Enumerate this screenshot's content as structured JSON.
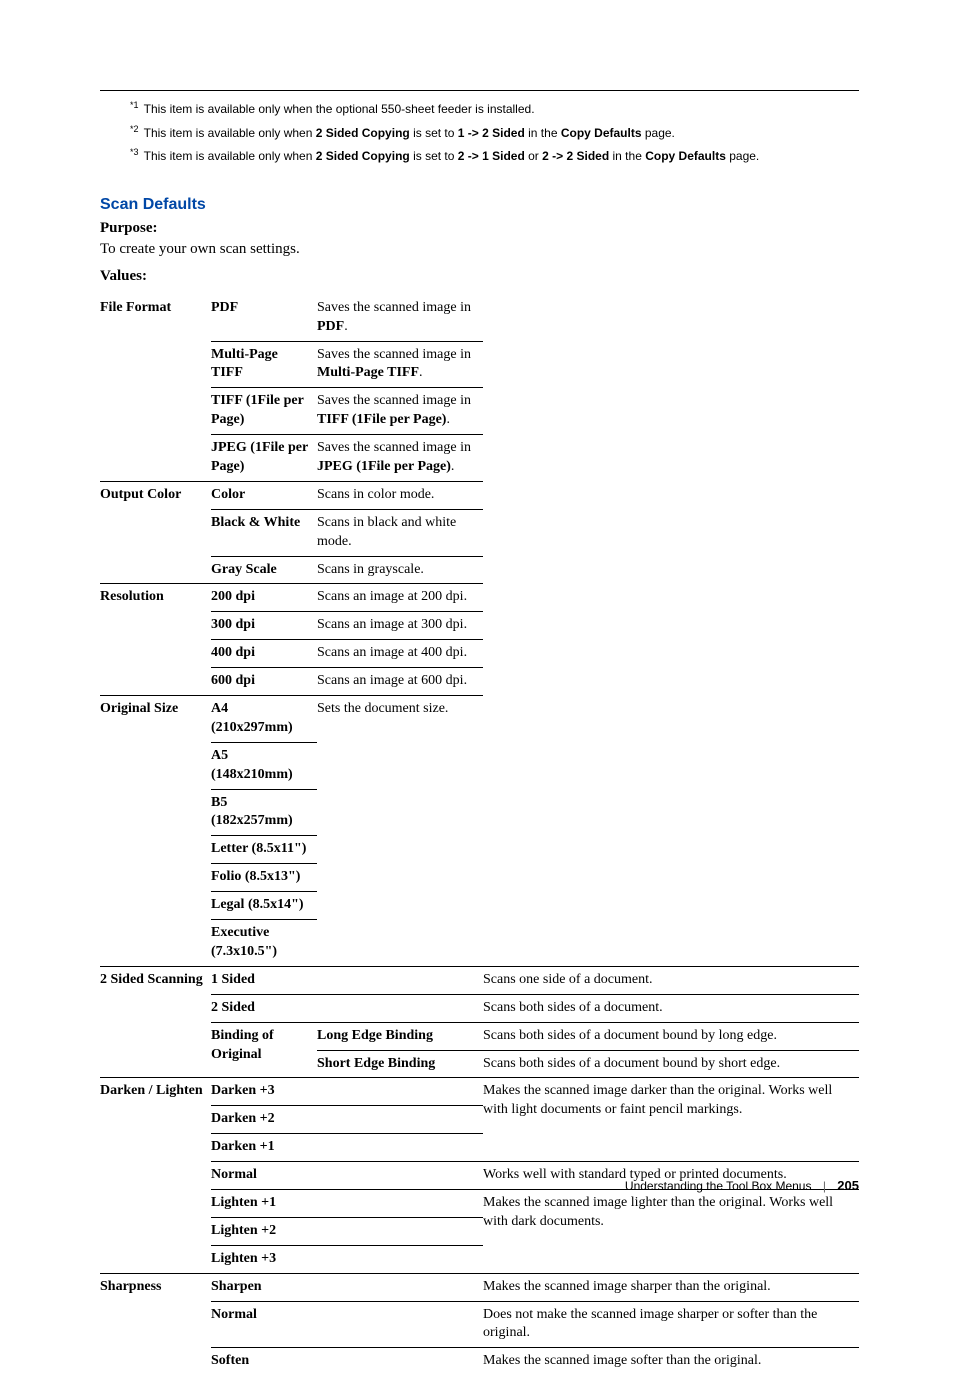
{
  "footnotes": [
    {
      "sup": "*1",
      "pre": "This item is available only when the optional 550-sheet feeder is installed.",
      "bolds": []
    },
    {
      "sup": "*2",
      "parts": [
        "This item is available only when ",
        {
          "b": "2 Sided Copying"
        },
        " is set to ",
        {
          "b": "1 -> 2 Sided"
        },
        " in the ",
        {
          "b": "Copy Defaults"
        },
        " page."
      ]
    },
    {
      "sup": "*3",
      "parts": [
        "This item is available only when ",
        {
          "b": "2 Sided Copying"
        },
        " is set to ",
        {
          "b": "2 -> 1 Sided"
        },
        " or ",
        {
          "b": "2 -> 2 Sided"
        },
        " in the ",
        {
          "b": "Copy Defaults"
        },
        " page."
      ]
    }
  ],
  "section": {
    "title": "Scan Defaults",
    "purpose_label": "Purpose:",
    "purpose_text": "To create your own scan settings.",
    "values_label": "Values:"
  },
  "table": [
    {
      "cat": "File Format",
      "val": "PDF",
      "desc_parts": [
        "Saves the scanned image in ",
        {
          "b": "PDF"
        },
        "."
      ]
    },
    {
      "val": "Multi-Page TIFF",
      "desc_parts": [
        "Saves the scanned image in ",
        {
          "b": "Multi-Page TIFF"
        },
        "."
      ]
    },
    {
      "val": "TIFF (1File per Page)",
      "desc_parts": [
        "Saves the scanned image in ",
        {
          "b": "TIFF (1File per Page)"
        },
        "."
      ]
    },
    {
      "val": "JPEG (1File per Page)",
      "desc_parts": [
        "Saves the scanned image in ",
        {
          "b": "JPEG (1File per Page)"
        },
        "."
      ]
    },
    {
      "cat": "Output Color",
      "val": "Color",
      "desc": "Scans in color mode."
    },
    {
      "val": "Black & White",
      "desc": "Scans in black and white mode."
    },
    {
      "val": "Gray Scale",
      "desc": "Scans in grayscale."
    },
    {
      "cat": "Resolution",
      "val": "200 dpi",
      "desc": "Scans an image at 200 dpi."
    },
    {
      "val": "300 dpi",
      "desc": "Scans an image at 300 dpi."
    },
    {
      "val": "400 dpi",
      "desc": "Scans an image at 400 dpi."
    },
    {
      "val": "600 dpi",
      "desc": "Scans an image at 600 dpi."
    },
    {
      "cat": "Original Size",
      "val": "A4 (210x297mm)",
      "desc": "Sets the document size.",
      "desc_rowspan": 7
    },
    {
      "val": "A5 (148x210mm)"
    },
    {
      "val": "B5 (182x257mm)"
    },
    {
      "val": "Letter (8.5x11\")"
    },
    {
      "val": "Folio (8.5x13\")"
    },
    {
      "val": "Legal (8.5x14\")"
    },
    {
      "val": "Executive (7.3x10.5\")"
    },
    {
      "cat": "2 Sided Scanning",
      "cat_rowspan": 4,
      "val": "1 Sided",
      "val_colspan": 2,
      "desc": "Scans one side of a document."
    },
    {
      "val": "2 Sided",
      "val_colspan": 2,
      "desc": "Scans both sides of a document."
    },
    {
      "val": "Binding of Original",
      "val_rowspan": 2,
      "sub": "Long Edge Binding",
      "desc": "Scans both sides of a document bound by long edge."
    },
    {
      "sub": "Short Edge Binding",
      "desc": "Scans both sides of a document bound by short edge."
    },
    {
      "cat": "Darken / Lighten",
      "cat_rowspan": 7,
      "val": "Darken +3",
      "val_colspan": 2,
      "desc": "Makes the scanned image darker than the original. Works well with light documents or faint pencil markings.",
      "desc_rowspan": 3
    },
    {
      "val": "Darken +2",
      "val_colspan": 2
    },
    {
      "val": "Darken +1",
      "val_colspan": 2
    },
    {
      "val": "Normal",
      "val_colspan": 2,
      "desc": "Works well with standard typed or printed documents."
    },
    {
      "val": "Lighten +1",
      "val_colspan": 2,
      "desc": "Makes the scanned image lighter than the original. Works well with dark documents.",
      "desc_rowspan": 3
    },
    {
      "val": "Lighten +2",
      "val_colspan": 2
    },
    {
      "val": "Lighten +3",
      "val_colspan": 2
    },
    {
      "cat": "Sharpness",
      "cat_rowspan": 3,
      "val": "Sharpen",
      "val_colspan": 2,
      "desc": "Makes the scanned image sharper than the original."
    },
    {
      "val": "Normal",
      "val_colspan": 2,
      "desc": "Does not make the scanned image sharper or softer than the original."
    },
    {
      "val": "Soften",
      "val_colspan": 2,
      "desc": "Makes the scanned image softer than the original."
    }
  ],
  "footer": {
    "chapter": "Understanding the Tool Box Menus",
    "page": "205"
  }
}
